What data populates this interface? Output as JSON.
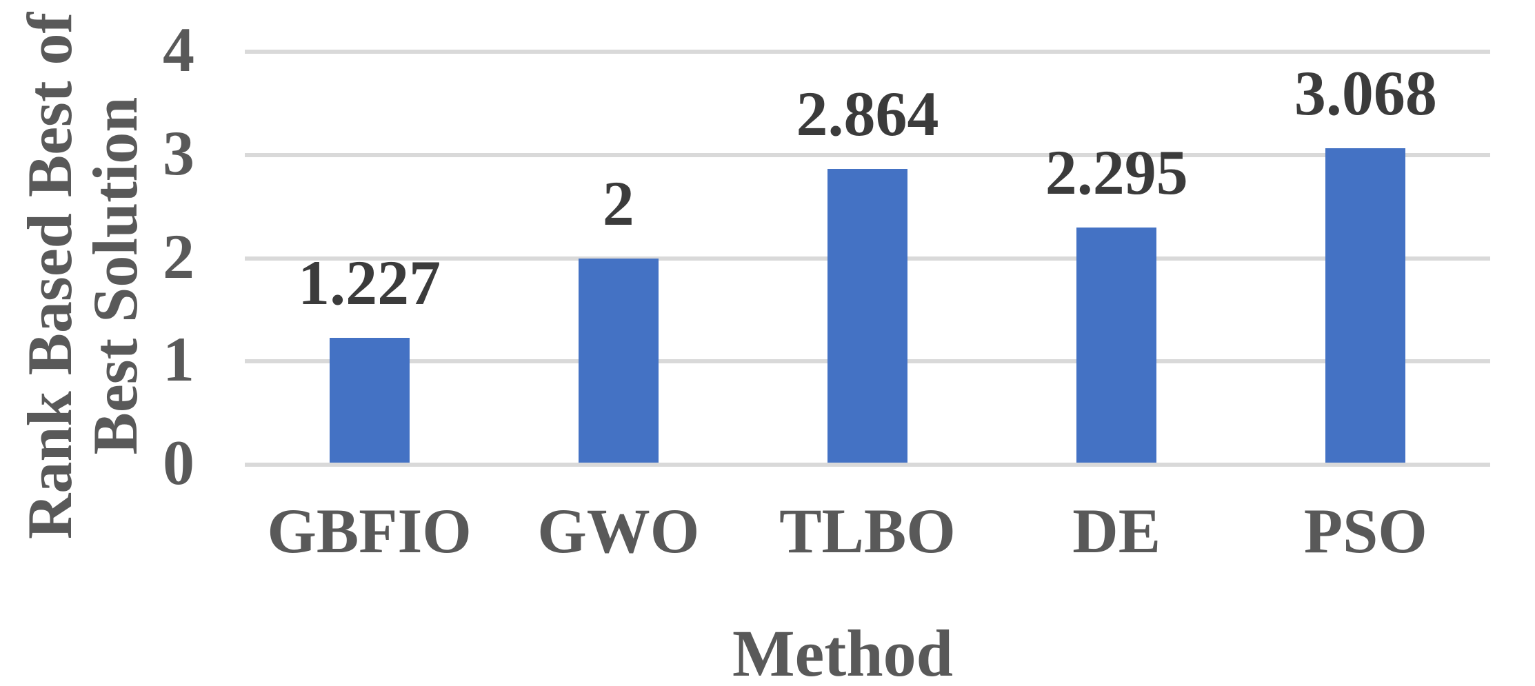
{
  "chart_data": {
    "type": "bar",
    "title": "",
    "xlabel": "Method",
    "ylabel": "Rank Based Best of Best Solution",
    "ylabel_lines": [
      "Rank Based Best of",
      "Best Solution"
    ],
    "categories": [
      "GBFIO",
      "GWO",
      "TLBO",
      "DE",
      "PSO"
    ],
    "values": [
      1.227,
      2,
      2.864,
      2.295,
      3.068
    ],
    "value_labels": [
      "1.227",
      "2",
      "2.864",
      "2.295",
      "3.068"
    ],
    "yticks": [
      0,
      1,
      2,
      3,
      4
    ],
    "ylim": [
      0,
      4
    ],
    "grid": true,
    "legend_position": "none",
    "bar_color": "#4472C4",
    "gridline_color": "#D9D9D9",
    "axis_line_color": "#D9D9D9",
    "axis_text_color": "#595959",
    "data_label_color": "#3B3B3B",
    "background_color": "#FFFFFF"
  }
}
